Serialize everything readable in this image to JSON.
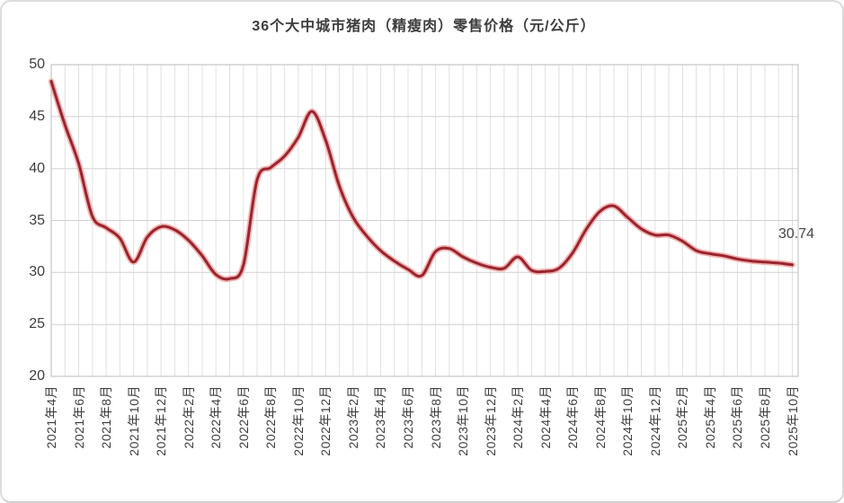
{
  "chart": {
    "title": "36个大中城市猪肉（精瘦肉）零售价格（元/公斤）",
    "last_value_label": "30.74"
  },
  "chart_data": {
    "type": "line",
    "title": "36个大中城市猪肉（精瘦肉）零售价格（元/公斤）",
    "unit": "元/公斤",
    "grid": "on",
    "legend": "none",
    "ylim": [
      20,
      50
    ],
    "y_ticks": [
      20,
      25,
      30,
      35,
      40,
      45,
      50
    ],
    "x_tick_labels": [
      "2021年4月",
      "2021年6月",
      "2021年8月",
      "2021年10月",
      "2021年12月",
      "2022年2月",
      "2022年4月",
      "2022年6月",
      "2022年8月",
      "2022年10月",
      "2022年12月",
      "2023年2月",
      "2023年4月",
      "2023年6月",
      "2023年8月",
      "2023年10月",
      "2023年12月",
      "2024年2月",
      "2024年4月",
      "2024年6月",
      "2024年8月",
      "2024年10月",
      "2024年12月",
      "2025年2月",
      "2025年4月",
      "2025年6月",
      "2025年8月",
      "2025年10月"
    ],
    "x": [
      "2021年4月",
      "2021年5月",
      "2021年6月",
      "2021年7月",
      "2021年8月",
      "2021年9月",
      "2021年10月",
      "2021年11月",
      "2021年12月",
      "2022年1月",
      "2022年2月",
      "2022年3月",
      "2022年4月",
      "2022年5月",
      "2022年6月",
      "2022年7月",
      "2022年8月",
      "2022年9月",
      "2022年10月",
      "2022年11月",
      "2022年12月",
      "2023年1月",
      "2023年2月",
      "2023年3月",
      "2023年4月",
      "2023年5月",
      "2023年6月",
      "2023年7月",
      "2023年8月",
      "2023年9月",
      "2023年10月",
      "2023年11月",
      "2023年12月",
      "2024年1月",
      "2024年2月",
      "2024年3月",
      "2024年4月",
      "2024年5月",
      "2024年6月",
      "2024年7月",
      "2024年8月",
      "2024年9月",
      "2024年10月",
      "2024年11月",
      "2024年12月",
      "2025年1月",
      "2025年2月",
      "2025年3月",
      "2025年4月",
      "2025年5月",
      "2025年6月",
      "2025年7月",
      "2025年8月",
      "2025年9月",
      "2025年10月"
    ],
    "values": [
      48.4,
      44.2,
      40.5,
      35.4,
      34.3,
      33.3,
      31.0,
      33.4,
      34.4,
      34.1,
      33.1,
      31.6,
      29.8,
      29.4,
      30.7,
      38.9,
      40.1,
      41.2,
      43.0,
      45.5,
      42.7,
      38.3,
      35.3,
      33.5,
      32.1,
      31.1,
      30.3,
      29.7,
      32.0,
      32.3,
      31.5,
      30.9,
      30.5,
      30.4,
      31.5,
      30.2,
      30.1,
      30.4,
      31.9,
      34.2,
      35.9,
      36.4,
      35.3,
      34.2,
      33.6,
      33.6,
      33.0,
      32.1,
      31.8,
      31.6,
      31.3,
      31.1,
      31.0,
      30.9,
      30.74
    ],
    "annotation": {
      "text": "30.74",
      "x_label": "2025年10月",
      "value": 30.74
    },
    "colors": {
      "line": "#992430",
      "line_glow": "#f0a8a5",
      "grid_h": "#d2d2d2",
      "grid_v": "#e0e0e0",
      "plot_border": "#c6c6c6",
      "text": "#3d3d3d"
    }
  }
}
